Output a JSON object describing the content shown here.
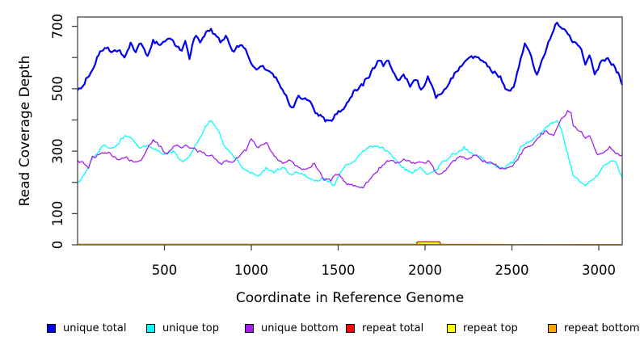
{
  "figure": {
    "x_axis_label": "Coordinate in Reference Genome",
    "y_axis_label": "Read Coverage Depth"
  },
  "chart_data": {
    "type": "line",
    "title": "",
    "xlabel": "Coordinate in Reference Genome",
    "ylabel": "Read Coverage Depth",
    "xlim": [
      0,
      3135
    ],
    "ylim": [
      0,
      730
    ],
    "x_ticks": [
      500,
      1000,
      1500,
      2000,
      2500,
      3000
    ],
    "y_ticks": [
      0,
      100,
      200,
      300,
      400,
      500,
      600,
      700
    ],
    "y_tick_labels": [
      0,
      100,
      300,
      500,
      700
    ],
    "grid": false,
    "legend_position": "bottom",
    "axis_color": "#444444",
    "text_color": "#000000",
    "series": [
      {
        "name": "unique total",
        "color": "#0000EE",
        "width": 2.2,
        "jitter": 14,
        "points": [
          [
            0,
            495
          ],
          [
            40,
            515
          ],
          [
            85,
            560
          ],
          [
            130,
            620
          ],
          [
            165,
            630
          ],
          [
            195,
            617
          ],
          [
            235,
            622
          ],
          [
            270,
            600
          ],
          [
            305,
            648
          ],
          [
            335,
            617
          ],
          [
            365,
            645
          ],
          [
            403,
            605
          ],
          [
            435,
            657
          ],
          [
            475,
            640
          ],
          [
            520,
            660
          ],
          [
            560,
            640
          ],
          [
            600,
            622
          ],
          [
            620,
            653
          ],
          [
            644,
            595
          ],
          [
            660,
            640
          ],
          [
            682,
            670
          ],
          [
            705,
            648
          ],
          [
            730,
            668
          ],
          [
            768,
            692
          ],
          [
            790,
            675
          ],
          [
            822,
            648
          ],
          [
            853,
            670
          ],
          [
            890,
            622
          ],
          [
            937,
            640
          ],
          [
            977,
            612
          ],
          [
            1000,
            580
          ],
          [
            1040,
            565
          ],
          [
            1086,
            560
          ],
          [
            1132,
            537
          ],
          [
            1180,
            497
          ],
          [
            1233,
            440
          ],
          [
            1272,
            478
          ],
          [
            1310,
            470
          ],
          [
            1350,
            448
          ],
          [
            1388,
            413
          ],
          [
            1426,
            395
          ],
          [
            1472,
            404
          ],
          [
            1512,
            426
          ],
          [
            1560,
            460
          ],
          [
            1597,
            497
          ],
          [
            1644,
            510
          ],
          [
            1690,
            555
          ],
          [
            1737,
            590
          ],
          [
            1760,
            572
          ],
          [
            1790,
            590
          ],
          [
            1815,
            555
          ],
          [
            1853,
            528
          ],
          [
            1877,
            546
          ],
          [
            1914,
            506
          ],
          [
            1947,
            528
          ],
          [
            1977,
            497
          ],
          [
            2016,
            540
          ],
          [
            2040,
            510
          ],
          [
            2063,
            470
          ],
          [
            2085,
            482
          ],
          [
            2110,
            497
          ],
          [
            2180,
            555
          ],
          [
            2210,
            572
          ],
          [
            2286,
            604
          ],
          [
            2330,
            590
          ],
          [
            2390,
            550
          ],
          [
            2434,
            540
          ],
          [
            2472,
            497
          ],
          [
            2510,
            505
          ],
          [
            2540,
            570
          ],
          [
            2574,
            645
          ],
          [
            2600,
            620
          ],
          [
            2644,
            545
          ],
          [
            2700,
            630
          ],
          [
            2760,
            712
          ],
          [
            2790,
            692
          ],
          [
            2822,
            675
          ],
          [
            2868,
            648
          ],
          [
            2900,
            626
          ],
          [
            2923,
            577
          ],
          [
            2946,
            607
          ],
          [
            2977,
            546
          ],
          [
            3016,
            590
          ],
          [
            3053,
            598
          ],
          [
            3094,
            568
          ],
          [
            3120,
            540
          ],
          [
            3135,
            512
          ]
        ]
      },
      {
        "name": "unique top",
        "color": "#00FFFF",
        "width": 1.3,
        "jitter": 10,
        "points": [
          [
            0,
            198
          ],
          [
            40,
            226
          ],
          [
            86,
            279
          ],
          [
            132,
            310
          ],
          [
            156,
            320
          ],
          [
            179,
            310
          ],
          [
            226,
            320
          ],
          [
            250,
            341
          ],
          [
            272,
            350
          ],
          [
            295,
            346
          ],
          [
            319,
            337
          ],
          [
            365,
            310
          ],
          [
            412,
            315
          ],
          [
            458,
            301
          ],
          [
            505,
            293
          ],
          [
            551,
            301
          ],
          [
            598,
            270
          ],
          [
            644,
            284
          ],
          [
            667,
            306
          ],
          [
            691,
            328
          ],
          [
            714,
            350
          ],
          [
            737,
            381
          ],
          [
            760,
            397
          ],
          [
            784,
            386
          ],
          [
            807,
            368
          ],
          [
            830,
            337
          ],
          [
            853,
            310
          ],
          [
            877,
            297
          ],
          [
            900,
            279
          ],
          [
            923,
            270
          ],
          [
            946,
            248
          ],
          [
            970,
            239
          ],
          [
            993,
            230
          ],
          [
            1032,
            221
          ],
          [
            1055,
            226
          ],
          [
            1086,
            248
          ],
          [
            1132,
            230
          ],
          [
            1179,
            248
          ],
          [
            1225,
            226
          ],
          [
            1272,
            230
          ],
          [
            1318,
            217
          ],
          [
            1365,
            204
          ],
          [
            1411,
            213
          ],
          [
            1458,
            200
          ],
          [
            1481,
            192
          ],
          [
            1504,
            221
          ],
          [
            1551,
            257
          ],
          [
            1597,
            270
          ],
          [
            1644,
            301
          ],
          [
            1690,
            315
          ],
          [
            1737,
            311
          ],
          [
            1783,
            301
          ],
          [
            1806,
            288
          ],
          [
            1830,
            275
          ],
          [
            1877,
            248
          ],
          [
            1923,
            230
          ],
          [
            1970,
            248
          ],
          [
            2016,
            226
          ],
          [
            2063,
            240
          ],
          [
            2109,
            270
          ],
          [
            2156,
            293
          ],
          [
            2202,
            301
          ],
          [
            2225,
            315
          ],
          [
            2272,
            293
          ],
          [
            2318,
            284
          ],
          [
            2365,
            261
          ],
          [
            2411,
            248
          ],
          [
            2458,
            243
          ],
          [
            2504,
            261
          ],
          [
            2551,
            315
          ],
          [
            2597,
            328
          ],
          [
            2644,
            350
          ],
          [
            2690,
            372
          ],
          [
            2737,
            390
          ],
          [
            2760,
            398
          ],
          [
            2783,
            372
          ],
          [
            2807,
            319
          ],
          [
            2830,
            270
          ],
          [
            2853,
            221
          ],
          [
            2877,
            213
          ],
          [
            2900,
            198
          ],
          [
            2923,
            190
          ],
          [
            2946,
            204
          ],
          [
            2993,
            221
          ],
          [
            3016,
            243
          ],
          [
            3039,
            257
          ],
          [
            3086,
            268
          ],
          [
            3110,
            250
          ],
          [
            3135,
            214
          ]
        ]
      },
      {
        "name": "unique bottom",
        "color": "#A020F0",
        "width": 1.3,
        "jitter": 10,
        "points": [
          [
            0,
            272
          ],
          [
            40,
            257
          ],
          [
            63,
            245
          ],
          [
            86,
            284
          ],
          [
            132,
            293
          ],
          [
            179,
            297
          ],
          [
            226,
            274
          ],
          [
            272,
            279
          ],
          [
            319,
            266
          ],
          [
            365,
            270
          ],
          [
            389,
            293
          ],
          [
            412,
            320
          ],
          [
            435,
            337
          ],
          [
            458,
            328
          ],
          [
            481,
            315
          ],
          [
            505,
            293
          ],
          [
            528,
            301
          ],
          [
            551,
            315
          ],
          [
            574,
            320
          ],
          [
            598,
            310
          ],
          [
            621,
            320
          ],
          [
            644,
            310
          ],
          [
            691,
            297
          ],
          [
            737,
            288
          ],
          [
            784,
            279
          ],
          [
            830,
            257
          ],
          [
            877,
            266
          ],
          [
            923,
            279
          ],
          [
            970,
            301
          ],
          [
            1000,
            340
          ],
          [
            1016,
            330
          ],
          [
            1040,
            311
          ],
          [
            1086,
            328
          ],
          [
            1132,
            284
          ],
          [
            1179,
            261
          ],
          [
            1225,
            270
          ],
          [
            1272,
            248
          ],
          [
            1318,
            243
          ],
          [
            1365,
            261
          ],
          [
            1411,
            213
          ],
          [
            1458,
            204
          ],
          [
            1504,
            226
          ],
          [
            1551,
            192
          ],
          [
            1597,
            190
          ],
          [
            1644,
            182
          ],
          [
            1690,
            213
          ],
          [
            1737,
            248
          ],
          [
            1783,
            270
          ],
          [
            1830,
            261
          ],
          [
            1877,
            275
          ],
          [
            1923,
            261
          ],
          [
            1970,
            266
          ],
          [
            2016,
            270
          ],
          [
            2063,
            232
          ],
          [
            2109,
            236
          ],
          [
            2156,
            265
          ],
          [
            2202,
            284
          ],
          [
            2248,
            275
          ],
          [
            2295,
            288
          ],
          [
            2342,
            270
          ],
          [
            2388,
            261
          ],
          [
            2434,
            243
          ],
          [
            2481,
            248
          ],
          [
            2527,
            270
          ],
          [
            2574,
            311
          ],
          [
            2620,
            320
          ],
          [
            2660,
            345
          ],
          [
            2700,
            365
          ],
          [
            2740,
            350
          ],
          [
            2780,
            400
          ],
          [
            2820,
            430
          ],
          [
            2840,
            424
          ],
          [
            2853,
            381
          ],
          [
            2877,
            368
          ],
          [
            2900,
            363
          ],
          [
            2923,
            341
          ],
          [
            2946,
            350
          ],
          [
            2970,
            319
          ],
          [
            2993,
            288
          ],
          [
            3016,
            293
          ],
          [
            3039,
            301
          ],
          [
            3063,
            315
          ],
          [
            3086,
            301
          ],
          [
            3109,
            293
          ],
          [
            3135,
            288
          ]
        ]
      },
      {
        "name": "repeat total",
        "color": "#FF0000",
        "width": 1.5,
        "jitter": 0,
        "points": [
          [
            0,
            0
          ],
          [
            1950,
            0
          ],
          [
            1956,
            9
          ],
          [
            2084,
            9
          ],
          [
            2090,
            0
          ],
          [
            3135,
            0
          ]
        ]
      },
      {
        "name": "repeat top",
        "color": "#FFFF00",
        "width": 1.5,
        "jitter": 0,
        "points": [
          [
            0,
            0
          ],
          [
            1956,
            0
          ],
          [
            1962,
            6
          ],
          [
            2078,
            6
          ],
          [
            2084,
            0
          ],
          [
            3135,
            0
          ]
        ]
      },
      {
        "name": "repeat bottom",
        "color": "#FFA500",
        "width": 1.5,
        "jitter": 0,
        "points": [
          [
            0,
            1
          ],
          [
            3135,
            1
          ]
        ]
      }
    ],
    "legend": [
      {
        "label": "unique total",
        "color": "#0000EE"
      },
      {
        "label": "unique top",
        "color": "#00FFFF"
      },
      {
        "label": "unique bottom",
        "color": "#A020F0"
      },
      {
        "label": "repeat total",
        "color": "#FF0000"
      },
      {
        "label": "repeat top",
        "color": "#FFFF00"
      },
      {
        "label": "repeat bottom",
        "color": "#FFA500"
      }
    ]
  }
}
